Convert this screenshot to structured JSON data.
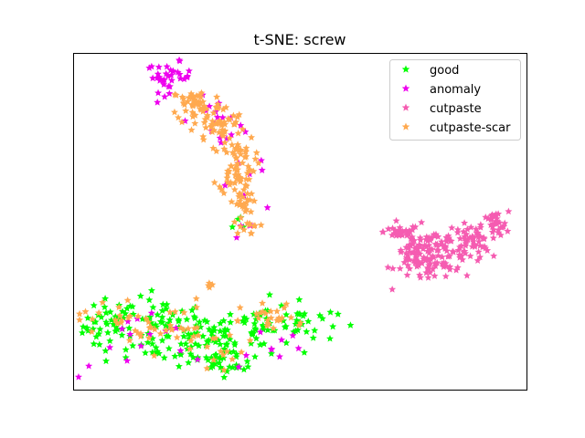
{
  "chart_data": {
    "type": "scatter",
    "title": "t-SNE: screw",
    "xlabel": "",
    "ylabel": "",
    "xlim": [
      0,
      100
    ],
    "ylim": [
      0,
      100
    ],
    "axis_ticks": false,
    "grid": false,
    "legend_position": "top-right",
    "marker": "star",
    "series": [
      {
        "name": "good",
        "color": "#00ff00",
        "clusters": [
          {
            "cx": 8,
            "cy": 19,
            "sx": 3.0,
            "sy": 4.0,
            "n": 45
          },
          {
            "cx": 20,
            "cy": 17,
            "sx": 4.5,
            "sy": 5.0,
            "n": 70
          },
          {
            "cx": 30,
            "cy": 15,
            "sx": 3.0,
            "sy": 5.0,
            "n": 45
          },
          {
            "cx": 40,
            "cy": 19,
            "sx": 4.0,
            "sy": 4.0,
            "n": 40
          },
          {
            "cx": 50,
            "cy": 20,
            "sx": 4.0,
            "sy": 3.0,
            "n": 30
          },
          {
            "cx": 35,
            "cy": 9,
            "sx": 3.0,
            "sy": 2.5,
            "n": 25
          },
          {
            "cx": 37,
            "cy": 49,
            "sx": 1.0,
            "sy": 1.5,
            "n": 4
          }
        ]
      },
      {
        "name": "anomaly",
        "color": "#ee00ee",
        "clusters": [
          {
            "cx": 21,
            "cy": 93,
            "sx": 2.5,
            "sy": 2.2,
            "n": 35
          },
          {
            "cx": 31,
            "cy": 81,
            "sx": 4.0,
            "sy": 3.5,
            "n": 14
          },
          {
            "cx": 36,
            "cy": 67,
            "sx": 3.0,
            "sy": 5.0,
            "n": 10
          },
          {
            "cx": 38,
            "cy": 48,
            "sx": 1.5,
            "sy": 1.5,
            "n": 4
          },
          {
            "cx": 15,
            "cy": 13,
            "sx": 8.0,
            "sy": 5.0,
            "n": 14
          },
          {
            "cx": 40,
            "cy": 12,
            "sx": 8.0,
            "sy": 5.0,
            "n": 10
          }
        ]
      },
      {
        "name": "cutpaste",
        "color": "#f55cb1",
        "clusters": [
          {
            "cx": 72,
            "cy": 47,
            "sx": 1.8,
            "sy": 1.0,
            "n": 25
          },
          {
            "cx": 76,
            "cy": 40,
            "sx": 2.5,
            "sy": 4.0,
            "n": 90
          },
          {
            "cx": 82,
            "cy": 41,
            "sx": 2.5,
            "sy": 3.0,
            "n": 60
          },
          {
            "cx": 88,
            "cy": 44,
            "sx": 2.0,
            "sy": 2.5,
            "n": 50
          },
          {
            "cx": 93,
            "cy": 49,
            "sx": 1.5,
            "sy": 2.0,
            "n": 30
          }
        ]
      },
      {
        "name": "cutpaste-scar",
        "color": "#ffa94f",
        "clusters": [
          {
            "cx": 27,
            "cy": 85,
            "sx": 2.8,
            "sy": 2.5,
            "n": 50
          },
          {
            "cx": 32,
            "cy": 79,
            "sx": 2.8,
            "sy": 2.8,
            "n": 45
          },
          {
            "cx": 36,
            "cy": 67,
            "sx": 2.0,
            "sy": 4.5,
            "n": 70
          },
          {
            "cx": 37,
            "cy": 55,
            "sx": 1.2,
            "sy": 3.0,
            "n": 25
          },
          {
            "cx": 38,
            "cy": 48,
            "sx": 1.5,
            "sy": 1.0,
            "n": 10
          },
          {
            "cx": 30,
            "cy": 31,
            "sx": 0.6,
            "sy": 0.4,
            "n": 4
          },
          {
            "cx": 9,
            "cy": 21,
            "sx": 4.0,
            "sy": 4.0,
            "n": 20
          },
          {
            "cx": 20,
            "cy": 19,
            "sx": 5.0,
            "sy": 4.0,
            "n": 25
          },
          {
            "cx": 32,
            "cy": 12,
            "sx": 5.0,
            "sy": 4.0,
            "n": 18
          },
          {
            "cx": 44,
            "cy": 20,
            "sx": 3.5,
            "sy": 3.0,
            "n": 14
          },
          {
            "cx": 44,
            "cy": 21,
            "sx": 2.5,
            "sy": 2.0,
            "n": 8
          },
          {
            "cx": 45,
            "cy": 21,
            "sx": 1.0,
            "sy": 0.8,
            "n": 4
          }
        ]
      }
    ]
  }
}
